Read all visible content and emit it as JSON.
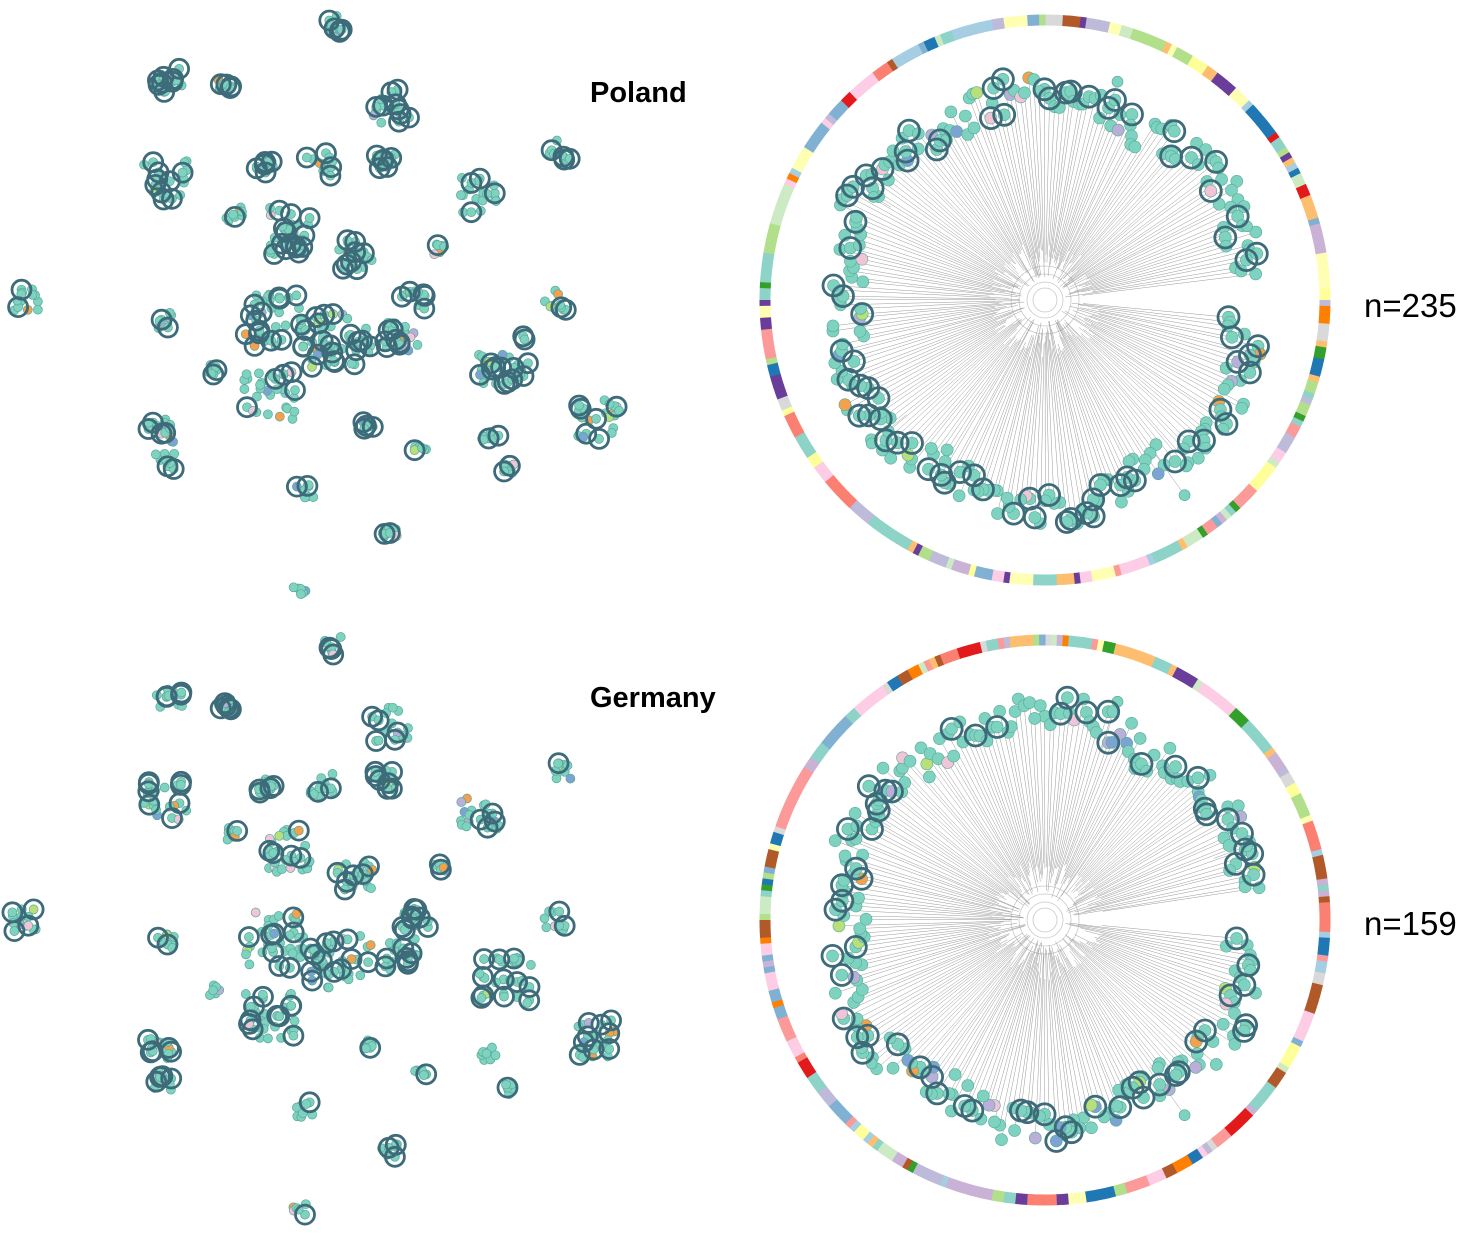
{
  "panels": [
    {
      "country": "Poland",
      "n_label": "n=235",
      "highlight_density": 0.55,
      "seed": 11
    },
    {
      "country": "Germany",
      "n_label": "n=159",
      "highlight_density": 0.38,
      "seed": 37
    }
  ],
  "colors": {
    "node_fill": "#7dd3c0",
    "node_stroke": "#5aa897",
    "highlight_ring": "#3d6b7a",
    "lavender": "#b9afd8",
    "blue": "#7ba4d4",
    "orange": "#f5a04a",
    "pink": "#f2c4d8",
    "lime": "#b8e07a",
    "branch": "#9a9a9a"
  },
  "ring_palette": [
    "#d9d9d9",
    "#a6cee3",
    "#1f78b4",
    "#b2df8a",
    "#33a02c",
    "#fb9a99",
    "#e31a1c",
    "#fdbf6f",
    "#ff7f00",
    "#cab2d6",
    "#6a3d9a",
    "#ffff99",
    "#b15928",
    "#8dd3c7",
    "#ffffb3",
    "#bebada",
    "#fb8072",
    "#80b1d3",
    "#fccde5",
    "#ccebc5"
  ]
}
